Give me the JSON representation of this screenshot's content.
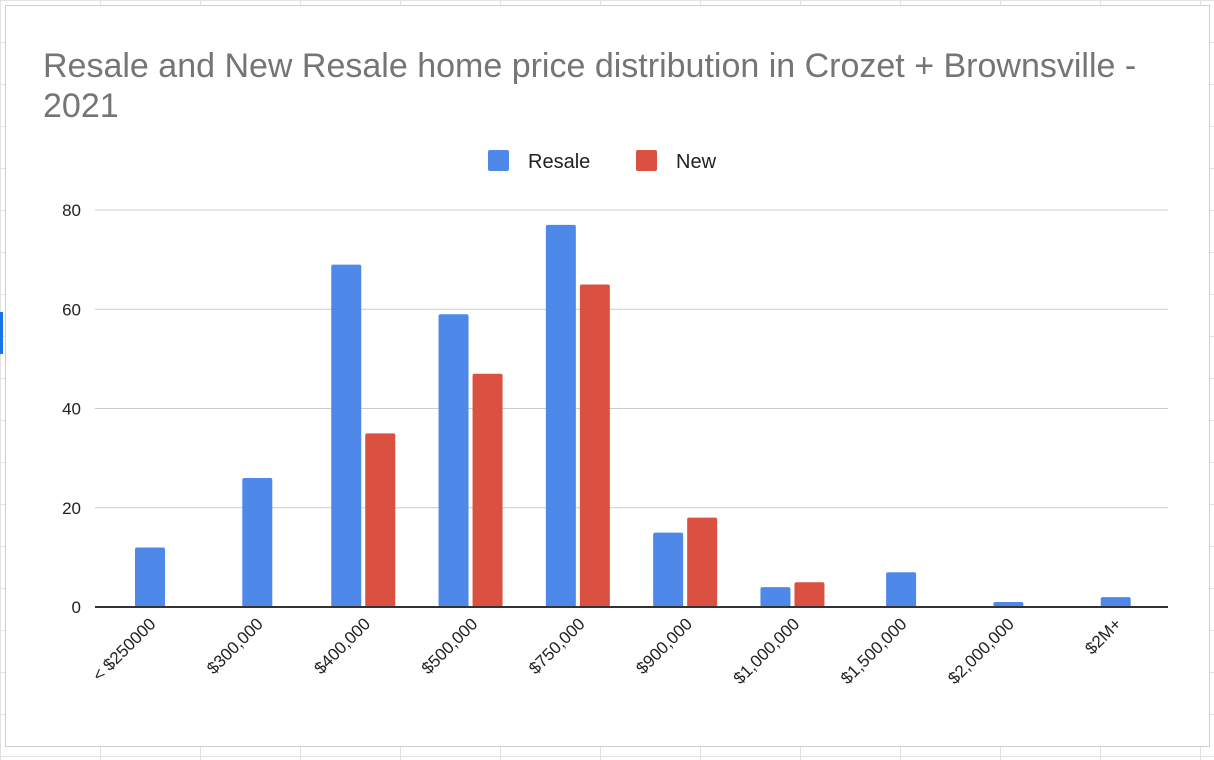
{
  "chart_data": {
    "type": "bar",
    "title": "Resale and New Resale home price distribution in Crozet + Brownsville - 2021",
    "categories": [
      "< $250000",
      "$300,000",
      "$400,000",
      "$500,000",
      "$750,000",
      "$900,000",
      "$1,000,000",
      "$1,500,000",
      "$2,000,000",
      "$2M+"
    ],
    "series": [
      {
        "name": "Resale",
        "color": "#4e89e9",
        "values": [
          12,
          26,
          69,
          59,
          77,
          15,
          4,
          7,
          1,
          2
        ]
      },
      {
        "name": "New",
        "color": "#da5041",
        "values": [
          0,
          0,
          35,
          47,
          65,
          18,
          5,
          0,
          0,
          0
        ]
      }
    ],
    "ylim": [
      0,
      80
    ],
    "yticks": [
      "0",
      "20",
      "40",
      "60",
      "80"
    ],
    "grid": true,
    "legend": "top"
  }
}
